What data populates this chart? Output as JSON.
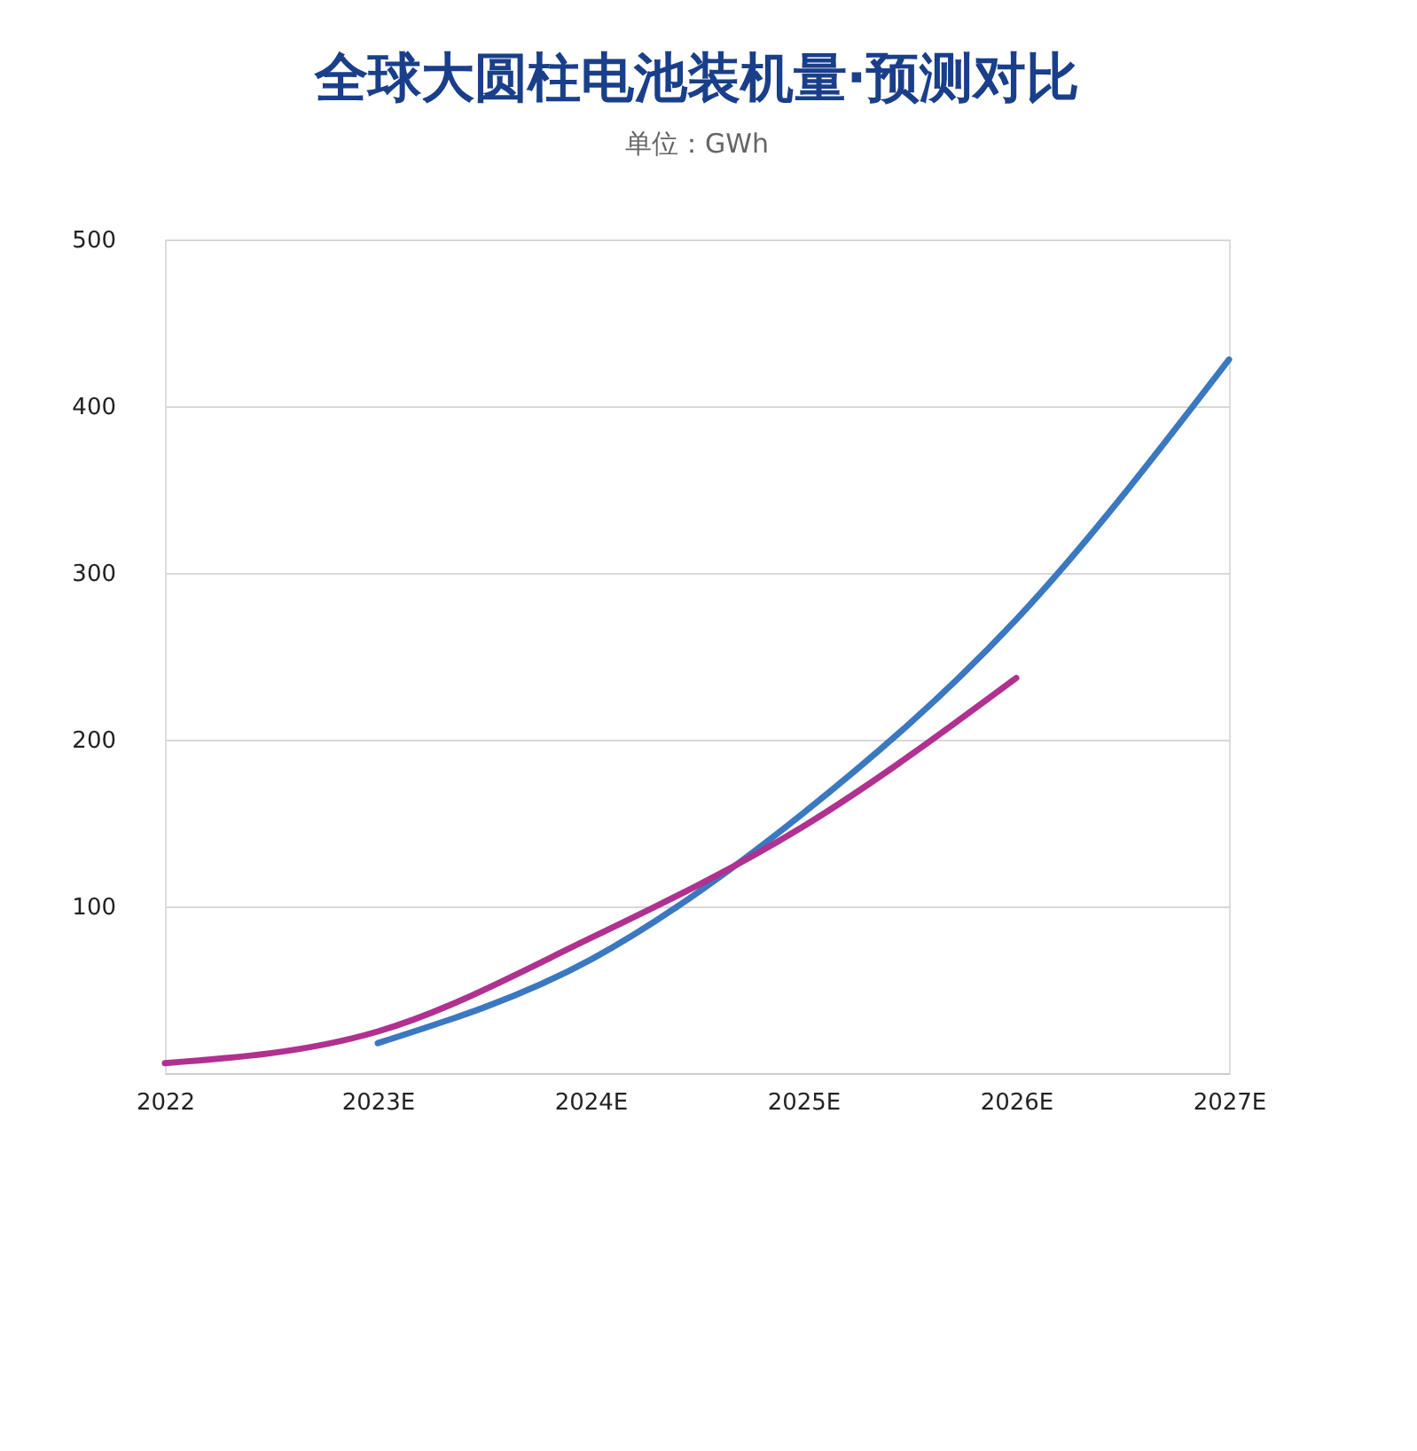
{
  "chart_data": {
    "type": "line",
    "title": "全球大圆柱电池装机量·预测对比",
    "subtitle": "单位：GWh",
    "categories": [
      "2022",
      "2023E",
      "2024E",
      "2025E",
      "2026E",
      "2027E"
    ],
    "series": [
      {
        "color": "#3a78c0",
        "values": [
          null,
          18,
          68,
          156,
          272,
          428
        ]
      },
      {
        "color": "#b0318f",
        "values": [
          6,
          25,
          81,
          148,
          237,
          null
        ]
      }
    ],
    "ylim": [
      0,
      500
    ],
    "yticks": [
      100,
      200,
      300,
      400,
      500
    ],
    "grid": "y",
    "legend": false,
    "marker": "none",
    "line_style": "solid"
  }
}
